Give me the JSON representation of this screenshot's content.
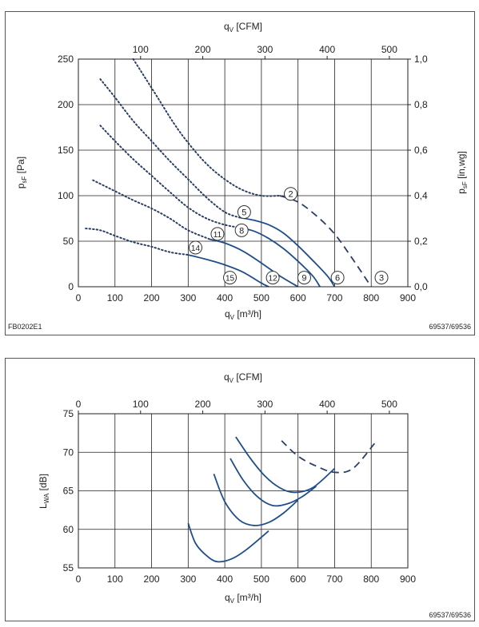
{
  "charts": [
    {
      "id": "top",
      "code_left": "FB0202E1",
      "code_right": "69537/69536",
      "xlabel_top": "q_V [CFM]",
      "xlabel_bottom": "q_V [m³/h]",
      "ylabel_left": "p_sF [Pa]",
      "ylabel_right": "p_sF [in,wg]"
    },
    {
      "id": "bottom",
      "code_right": "69537/69536",
      "xlabel_top": "q_V [CFM]",
      "xlabel_bottom": "q_V [m³/h]",
      "ylabel_left": "L_WA [dB]"
    }
  ],
  "chart_data": [
    {
      "type": "line",
      "xlabel": "qV [m³/h]",
      "x2label": "qV [CFM]",
      "ylabel": "psF [Pa]",
      "y2label": "psF [in,wg]",
      "xlim": [
        0,
        900
      ],
      "ylim": [
        0,
        250
      ],
      "x2lim": [
        0,
        529.7
      ],
      "y2lim": [
        0,
        1.0
      ],
      "x_ticks": [
        0,
        100,
        200,
        300,
        400,
        500,
        600,
        700,
        800,
        900
      ],
      "y_ticks": [
        0,
        50,
        100,
        150,
        200,
        250
      ],
      "x2_ticks": [
        100,
        200,
        300,
        400,
        500
      ],
      "y2_ticks": [
        "0,0",
        "0,2",
        "0,4",
        "0,6",
        "0,8",
        "1,0"
      ],
      "grid": true,
      "series": [
        {
          "style": "dotted",
          "color": "#2b3e66",
          "x": [
            150,
            210,
            260,
            300,
            350,
            400,
            450,
            500,
            550
          ],
          "y": [
            250,
            212,
            180,
            158,
            135,
            118,
            106,
            100,
            100
          ]
        },
        {
          "style": "dashed",
          "color": "#2b3e66",
          "x": [
            550,
            600,
            650,
            700,
            750,
            800
          ],
          "y": [
            100,
            93,
            78,
            58,
            30,
            0
          ]
        },
        {
          "style": "dotted",
          "color": "#2b3e66",
          "x": [
            60,
            100,
            150,
            200,
            250,
            300,
            350,
            400,
            440
          ],
          "y": [
            228,
            208,
            182,
            160,
            138,
            118,
            98,
            82,
            76
          ]
        },
        {
          "style": "solid",
          "color": "#1f4e8a",
          "x": [
            440,
            480,
            520,
            560,
            600,
            640,
            680,
            700
          ],
          "y": [
            76,
            73,
            68,
            59,
            45,
            29,
            12,
            0
          ]
        },
        {
          "style": "dotted",
          "color": "#2b3e66",
          "x": [
            60,
            100,
            150,
            200,
            250,
            300,
            350,
            400,
            440
          ],
          "y": [
            177,
            160,
            140,
            122,
            104,
            87,
            75,
            68,
            65
          ]
        },
        {
          "style": "solid",
          "color": "#1f4e8a",
          "x": [
            440,
            480,
            520,
            560,
            600,
            640,
            660
          ],
          "y": [
            65,
            61,
            53,
            42,
            28,
            12,
            0
          ]
        },
        {
          "style": "dotted",
          "color": "#2b3e66",
          "x": [
            40,
            100,
            150,
            200,
            250,
            300,
            360
          ],
          "y": [
            117,
            105,
            95,
            86,
            75,
            62,
            52
          ]
        },
        {
          "style": "solid",
          "color": "#1f4e8a",
          "x": [
            360,
            400,
            450,
            500,
            550,
            600
          ],
          "y": [
            52,
            48,
            39,
            26,
            12,
            0
          ]
        },
        {
          "style": "dotted",
          "color": "#2b3e66",
          "x": [
            20,
            60,
            100,
            150,
            200,
            250,
            300
          ],
          "y": [
            64,
            62,
            56,
            49,
            44,
            38,
            35
          ]
        },
        {
          "style": "solid",
          "color": "#1f4e8a",
          "x": [
            300,
            350,
            400,
            450,
            500,
            520
          ],
          "y": [
            35,
            30,
            24,
            16,
            4,
            0
          ]
        }
      ],
      "annotations": [
        {
          "text": "2",
          "x": 580,
          "y": 102
        },
        {
          "text": "3",
          "x": 828,
          "y": 10
        },
        {
          "text": "5",
          "x": 453,
          "y": 82
        },
        {
          "text": "6",
          "x": 708,
          "y": 10
        },
        {
          "text": "8",
          "x": 446,
          "y": 62
        },
        {
          "text": "9",
          "x": 617,
          "y": 10
        },
        {
          "text": "11",
          "x": 380,
          "y": 58
        },
        {
          "text": "12",
          "x": 531,
          "y": 10
        },
        {
          "text": "14",
          "x": 320,
          "y": 43
        },
        {
          "text": "15",
          "x": 414,
          "y": 10
        }
      ]
    },
    {
      "type": "line",
      "xlabel": "qV [m³/h]",
      "x2label": "qV [CFM]",
      "ylabel": "LWA [dB]",
      "xlim": [
        0,
        900
      ],
      "ylim": [
        55,
        75
      ],
      "x2lim": [
        0,
        529.7
      ],
      "x_ticks": [
        0,
        100,
        200,
        300,
        400,
        500,
        600,
        700,
        800,
        900
      ],
      "y_ticks": [
        55,
        60,
        65,
        70,
        75
      ],
      "x2_ticks": [
        0,
        100,
        200,
        300,
        400,
        500
      ],
      "grid": true,
      "series": [
        {
          "style": "solid",
          "color": "#1f4e8a",
          "x": [
            300,
            320,
            350,
            380,
            420,
            460,
            520
          ],
          "y": [
            60.8,
            58.2,
            56.6,
            55.8,
            56.2,
            57.4,
            59.8
          ]
        },
        {
          "style": "solid",
          "color": "#1f4e8a",
          "x": [
            370,
            400,
            440,
            480,
            520,
            560,
            600
          ],
          "y": [
            67.2,
            63.6,
            61.2,
            60.5,
            60.9,
            62.1,
            63.8
          ]
        },
        {
          "style": "solid",
          "color": "#1f4e8a",
          "x": [
            415,
            450,
            490,
            530,
            570,
            610,
            650
          ],
          "y": [
            69.2,
            66.4,
            64.2,
            63.1,
            63.3,
            64.2,
            65.6
          ]
        },
        {
          "style": "solid",
          "color": "#1f4e8a",
          "x": [
            430,
            470,
            510,
            550,
            590,
            640,
            700
          ],
          "y": [
            72.0,
            69.2,
            66.9,
            65.4,
            64.8,
            65.4,
            67.9
          ]
        },
        {
          "style": "dashed",
          "color": "#2b3e66",
          "x": [
            555,
            600,
            650,
            700,
            750,
            810
          ],
          "y": [
            71.5,
            69.5,
            68.2,
            67.4,
            67.9,
            71.2
          ]
        }
      ]
    }
  ]
}
